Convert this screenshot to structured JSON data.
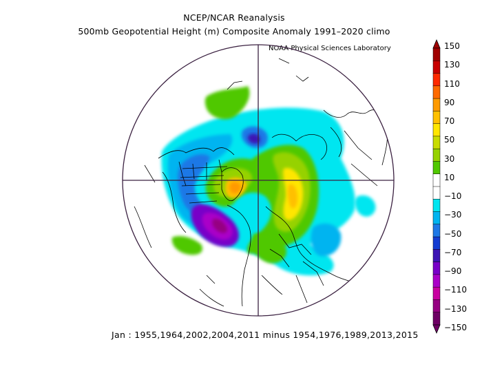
{
  "title": "NCEP/NCAR Reanalysis",
  "subtitle": "500mb Geopotential Height (m) Composite Anomaly 1991–2020 climo",
  "credit": "NOAA Physical Sciences Laboratory",
  "footer": "Jan : 1955,1964,2002,2004,2011 minus 1954,1976,1989,2013,2015",
  "colorbar": {
    "labels": [
      "150",
      "130",
      "110",
      "90",
      "70",
      "50",
      "30",
      "10",
      "−10",
      "−30",
      "−50",
      "−70",
      "−90",
      "−110",
      "−130",
      "−150"
    ],
    "colors": [
      "#a00000",
      "#c80000",
      "#ff2a00",
      "#ff6a00",
      "#ff9a00",
      "#ffc000",
      "#ffe600",
      "#c8dc00",
      "#96d200",
      "#50c800",
      "#ffffff",
      "#ffffff",
      "#00e6f0",
      "#00b4f0",
      "#1e78e6",
      "#143cd2",
      "#3c14b4",
      "#7800c8",
      "#aa00c8",
      "#c800a0",
      "#960082",
      "#6e0064"
    ]
  }
}
